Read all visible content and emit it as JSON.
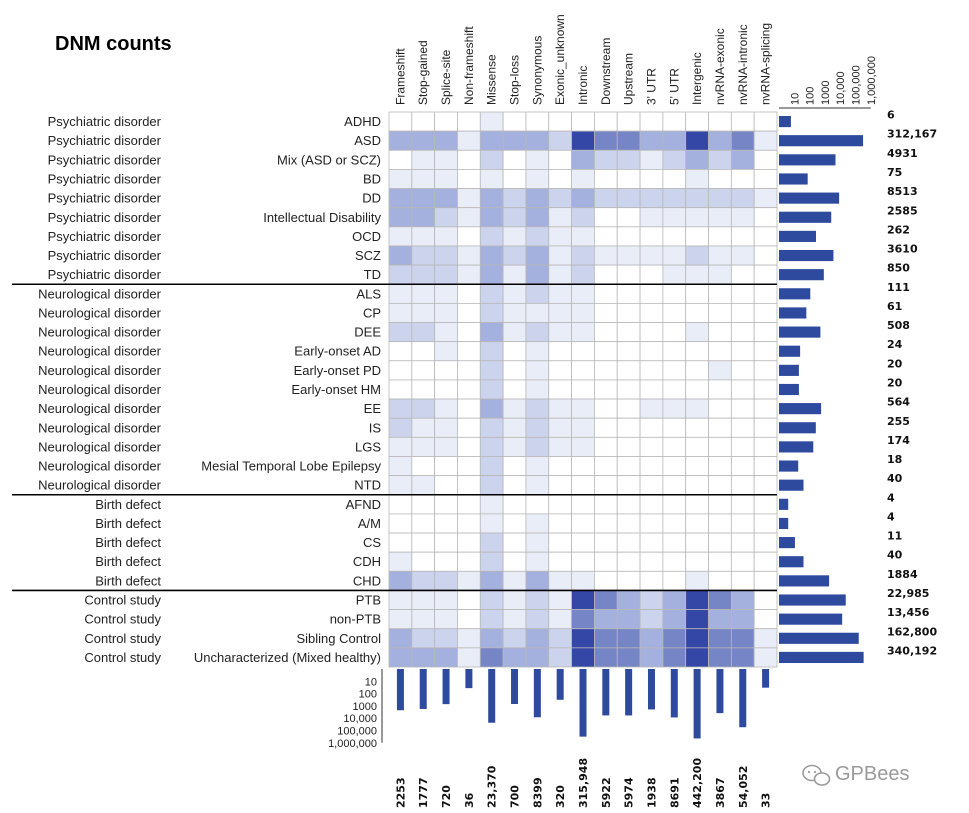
{
  "chart_data": {
    "type": "heatmap",
    "title": "DNM counts",
    "columns": [
      "Frameshift",
      "Stop-gained",
      "Splice-site",
      "Non-frameshift",
      "Missense",
      "Stop-loss",
      "Synonymous",
      "Exonic_unknown",
      "Intronic",
      "Downstream",
      "Upstream",
      "3' UTR",
      "5' UTR",
      "Intergenic",
      "nvRNA-exonic",
      "nvRNA-intronic",
      "nvRNA-splicing"
    ],
    "column_totals": [
      2253,
      1777,
      720,
      36,
      23370,
      700,
      8399,
      320,
      315948,
      5922,
      5974,
      1938,
      8691,
      442200,
      3867,
      54052,
      33
    ],
    "column_totals_labels": [
      "2253",
      "1777",
      "720",
      "36",
      "23,370",
      "700",
      "8399",
      "320",
      "315,948",
      "5922",
      "5974",
      "1938",
      "8691",
      "442,200",
      "3867",
      "54,052",
      "33"
    ],
    "rows": [
      {
        "group": "Psychiatric disorder",
        "name": "ADHD",
        "total": 6,
        "total_label": "6"
      },
      {
        "group": "Psychiatric disorder",
        "name": "ASD",
        "total": 312167,
        "total_label": "312,167"
      },
      {
        "group": "Psychiatric disorder",
        "name": "Mix (ASD or SCZ)",
        "total": 4931,
        "total_label": "4931"
      },
      {
        "group": "Psychiatric disorder",
        "name": "BD",
        "total": 75,
        "total_label": "75"
      },
      {
        "group": "Psychiatric disorder",
        "name": "DD",
        "total": 8513,
        "total_label": "8513"
      },
      {
        "group": "Psychiatric disorder",
        "name": "Intellectual Disability",
        "total": 2585,
        "total_label": "2585"
      },
      {
        "group": "Psychiatric disorder",
        "name": "OCD",
        "total": 262,
        "total_label": "262"
      },
      {
        "group": "Psychiatric disorder",
        "name": "SCZ",
        "total": 3610,
        "total_label": "3610"
      },
      {
        "group": "Psychiatric disorder",
        "name": "TD",
        "total": 850,
        "total_label": "850"
      },
      {
        "group": "Neurological disorder",
        "name": "ALS",
        "total": 111,
        "total_label": "111"
      },
      {
        "group": "Neurological disorder",
        "name": "CP",
        "total": 61,
        "total_label": "61"
      },
      {
        "group": "Neurological disorder",
        "name": "DEE",
        "total": 508,
        "total_label": "508"
      },
      {
        "group": "Neurological disorder",
        "name": "Early-onset AD",
        "total": 24,
        "total_label": "24"
      },
      {
        "group": "Neurological disorder",
        "name": "Early-onset PD",
        "total": 20,
        "total_label": "20"
      },
      {
        "group": "Neurological disorder",
        "name": "Early-onset HM",
        "total": 20,
        "total_label": "20"
      },
      {
        "group": "Neurological disorder",
        "name": "EE",
        "total": 564,
        "total_label": "564"
      },
      {
        "group": "Neurological disorder",
        "name": "IS",
        "total": 255,
        "total_label": "255"
      },
      {
        "group": "Neurological disorder",
        "name": "LGS",
        "total": 174,
        "total_label": "174"
      },
      {
        "group": "Neurological disorder",
        "name": "Mesial Temporal Lobe Epilepsy",
        "total": 18,
        "total_label": "18"
      },
      {
        "group": "Neurological disorder",
        "name": "NTD",
        "total": 40,
        "total_label": "40"
      },
      {
        "group": "Birth defect",
        "name": "AFND",
        "total": 4,
        "total_label": "4"
      },
      {
        "group": "Birth defect",
        "name": "A/M",
        "total": 4,
        "total_label": "4"
      },
      {
        "group": "Birth defect",
        "name": "CS",
        "total": 11,
        "total_label": "11"
      },
      {
        "group": "Birth defect",
        "name": "CDH",
        "total": 40,
        "total_label": "40"
      },
      {
        "group": "Birth defect",
        "name": "CHD",
        "total": 1884,
        "total_label": "1884"
      },
      {
        "group": "Control study",
        "name": "PTB",
        "total": 22985,
        "total_label": "22,985"
      },
      {
        "group": "Control study",
        "name": "non-PTB",
        "total": 13456,
        "total_label": "13,456"
      },
      {
        "group": "Control study",
        "name": "Sibling Control",
        "total": 162800,
        "total_label": "162,800"
      },
      {
        "group": "Control study",
        "name": "Uncharacterized (Mixed healthy)",
        "total": 340192,
        "total_label": "340,192"
      }
    ],
    "intensity_scale": "0 = white (none) to 5 = darkest blue",
    "intensity": [
      [
        0,
        0,
        0,
        0,
        1,
        0,
        0,
        0,
        0,
        0,
        0,
        0,
        0,
        0,
        0,
        0,
        0
      ],
      [
        3,
        3,
        3,
        1,
        3,
        3,
        3,
        2,
        5,
        4,
        4,
        3,
        3,
        5,
        3,
        4,
        1
      ],
      [
        0,
        1,
        1,
        0,
        2,
        0,
        1,
        0,
        3,
        2,
        2,
        1,
        2,
        3,
        2,
        3,
        0
      ],
      [
        1,
        1,
        1,
        0,
        1,
        0,
        1,
        0,
        1,
        0,
        0,
        0,
        0,
        1,
        0,
        0,
        0
      ],
      [
        3,
        3,
        3,
        1,
        3,
        2,
        3,
        2,
        3,
        2,
        2,
        2,
        2,
        2,
        2,
        2,
        1
      ],
      [
        3,
        3,
        2,
        1,
        3,
        2,
        3,
        1,
        2,
        0,
        0,
        1,
        1,
        1,
        1,
        1,
        0
      ],
      [
        1,
        1,
        1,
        0,
        2,
        1,
        2,
        1,
        1,
        0,
        0,
        0,
        0,
        0,
        0,
        0,
        0
      ],
      [
        3,
        2,
        2,
        1,
        3,
        2,
        3,
        1,
        2,
        1,
        1,
        1,
        1,
        2,
        1,
        1,
        0
      ],
      [
        2,
        2,
        2,
        1,
        3,
        1,
        3,
        1,
        2,
        0,
        0,
        0,
        1,
        1,
        1,
        0,
        0
      ],
      [
        1,
        1,
        1,
        0,
        2,
        1,
        2,
        1,
        1,
        0,
        0,
        0,
        0,
        0,
        0,
        0,
        0
      ],
      [
        1,
        1,
        1,
        0,
        2,
        1,
        1,
        1,
        1,
        0,
        0,
        0,
        0,
        0,
        0,
        0,
        0
      ],
      [
        2,
        2,
        1,
        0,
        3,
        1,
        2,
        1,
        1,
        0,
        0,
        0,
        0,
        1,
        0,
        0,
        0
      ],
      [
        0,
        0,
        1,
        0,
        2,
        0,
        1,
        0,
        0,
        0,
        0,
        0,
        0,
        0,
        0,
        0,
        0
      ],
      [
        0,
        0,
        0,
        0,
        2,
        0,
        1,
        0,
        0,
        0,
        0,
        0,
        0,
        0,
        1,
        0,
        0
      ],
      [
        0,
        0,
        0,
        0,
        2,
        0,
        1,
        0,
        0,
        0,
        0,
        0,
        0,
        0,
        0,
        0,
        0
      ],
      [
        2,
        2,
        1,
        0,
        3,
        1,
        2,
        1,
        1,
        0,
        0,
        1,
        1,
        1,
        0,
        0,
        0
      ],
      [
        2,
        1,
        1,
        0,
        2,
        1,
        2,
        1,
        1,
        0,
        0,
        0,
        0,
        0,
        0,
        0,
        0
      ],
      [
        1,
        1,
        1,
        0,
        2,
        1,
        2,
        1,
        1,
        0,
        0,
        0,
        0,
        0,
        0,
        0,
        0
      ],
      [
        1,
        0,
        0,
        0,
        2,
        0,
        1,
        0,
        0,
        0,
        0,
        0,
        0,
        0,
        0,
        0,
        0
      ],
      [
        1,
        1,
        0,
        0,
        2,
        0,
        1,
        0,
        0,
        0,
        0,
        0,
        0,
        0,
        0,
        0,
        0
      ],
      [
        0,
        0,
        0,
        0,
        1,
        0,
        0,
        0,
        0,
        0,
        0,
        0,
        0,
        0,
        0,
        0,
        0
      ],
      [
        0,
        0,
        0,
        0,
        1,
        0,
        1,
        0,
        0,
        0,
        0,
        0,
        0,
        0,
        0,
        0,
        0
      ],
      [
        0,
        0,
        0,
        0,
        2,
        0,
        1,
        0,
        0,
        0,
        0,
        0,
        0,
        0,
        0,
        0,
        0
      ],
      [
        1,
        0,
        0,
        0,
        2,
        0,
        1,
        0,
        0,
        0,
        0,
        0,
        0,
        0,
        0,
        0,
        0
      ],
      [
        3,
        2,
        2,
        1,
        3,
        1,
        3,
        1,
        1,
        0,
        0,
        0,
        0,
        1,
        0,
        0,
        0
      ],
      [
        1,
        1,
        1,
        0,
        2,
        1,
        2,
        1,
        5,
        4,
        3,
        2,
        3,
        5,
        4,
        3,
        0
      ],
      [
        1,
        1,
        1,
        0,
        2,
        1,
        2,
        1,
        4,
        3,
        3,
        2,
        3,
        5,
        3,
        3,
        0
      ],
      [
        3,
        2,
        2,
        1,
        3,
        2,
        3,
        2,
        5,
        4,
        4,
        3,
        4,
        5,
        4,
        4,
        1
      ],
      [
        3,
        3,
        3,
        1,
        4,
        3,
        3,
        2,
        5,
        4,
        4,
        3,
        4,
        5,
        4,
        4,
        1
      ]
    ],
    "x_total_axis": {
      "scale": "log",
      "ticks": [
        "10",
        "100",
        "1000",
        "10,000",
        "100,000",
        "1,000,000"
      ]
    },
    "y_total_axis": {
      "scale": "log",
      "ticks": [
        "10",
        "100",
        "1000",
        "10,000",
        "100,000",
        "1,000,000"
      ]
    },
    "colors": {
      "bar": "#2e4a9e",
      "scale": [
        "#ffffff",
        "#e9edf8",
        "#ccd3ec",
        "#a4b0dd",
        "#7685c5",
        "#3446a6"
      ],
      "grid": "#b8b8b8"
    }
  },
  "watermark": "GPBees",
  "watermark_icon": "wechat-icon"
}
